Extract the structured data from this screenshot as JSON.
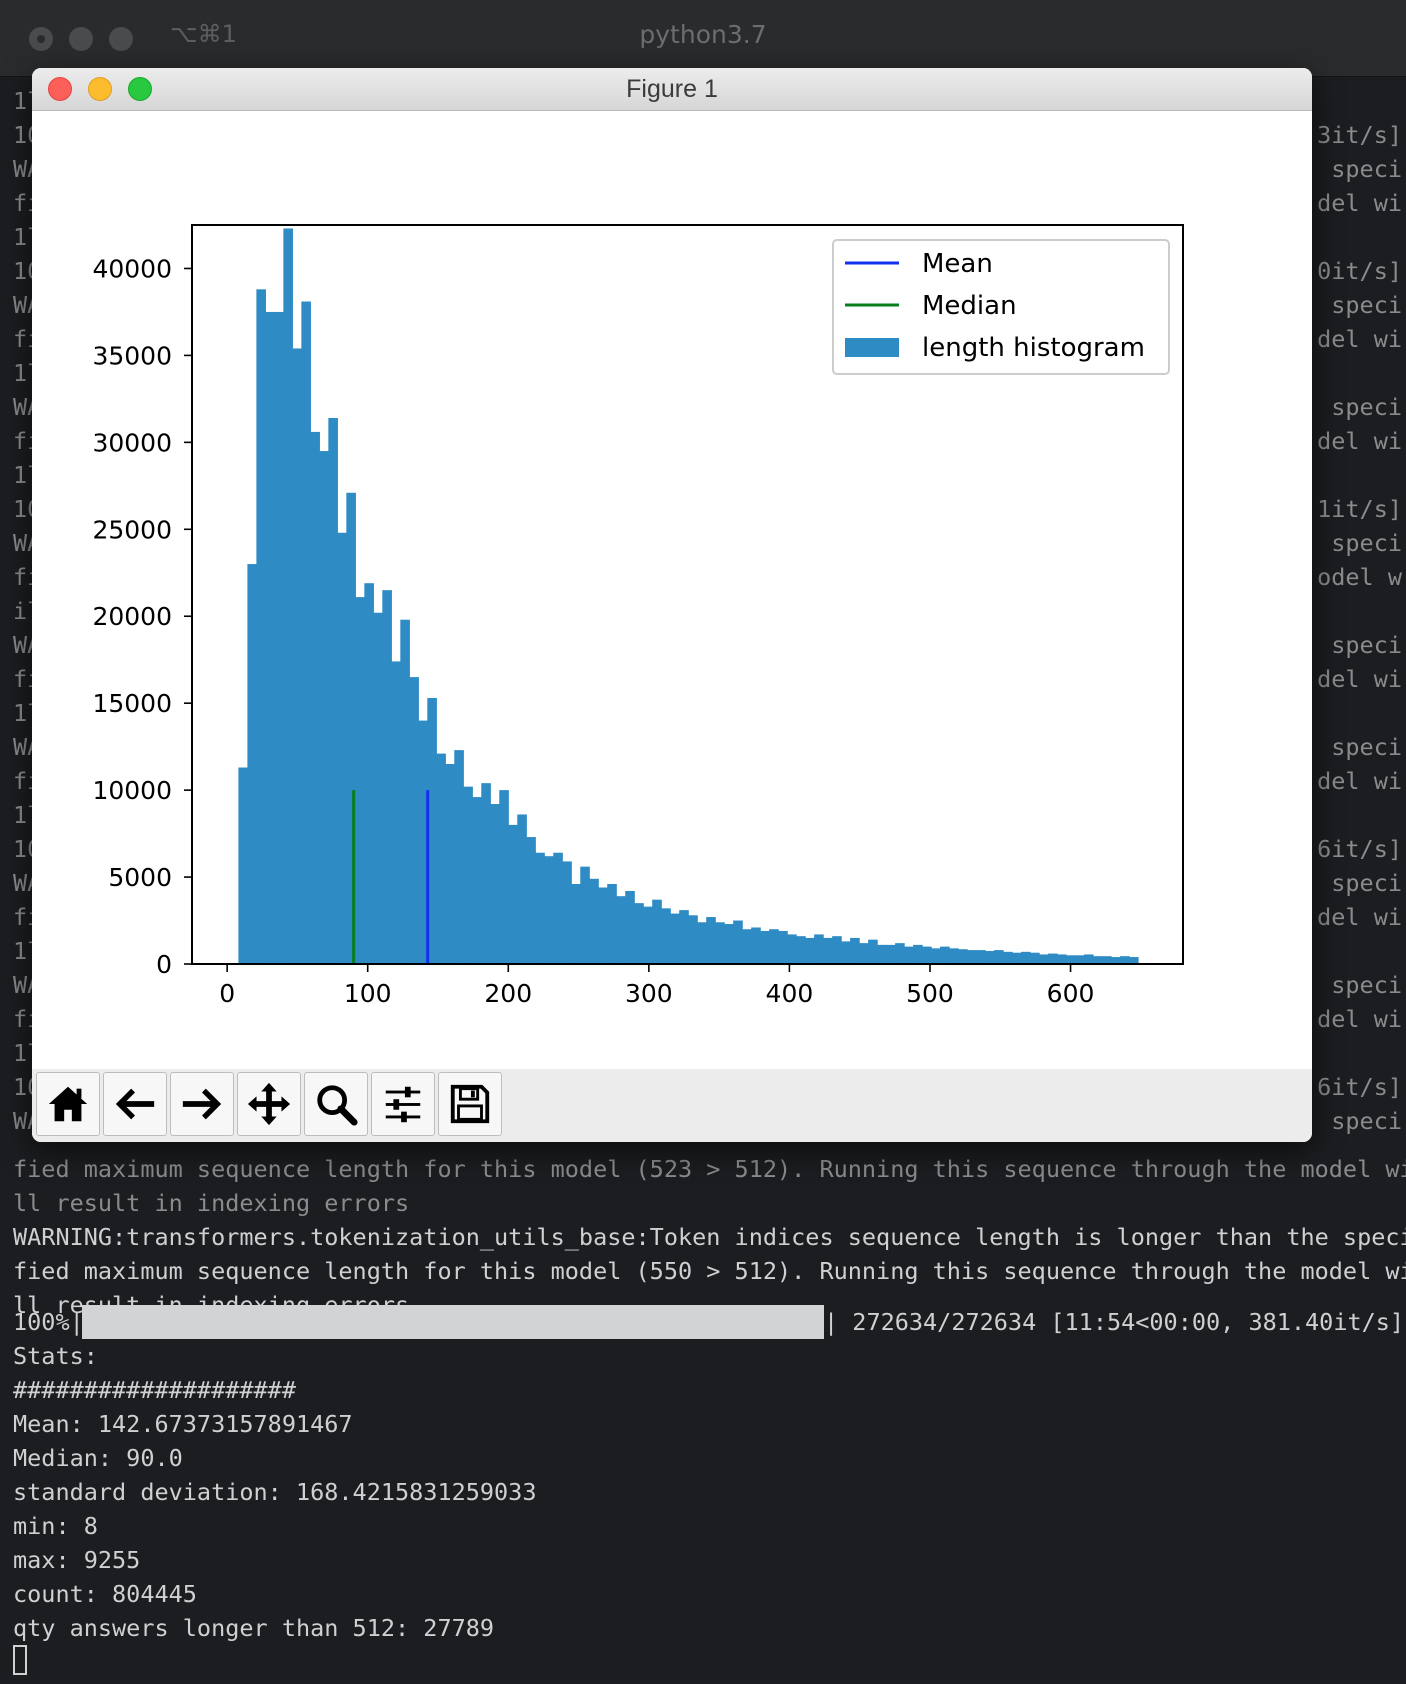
{
  "terminal": {
    "shortcut": "⌥⌘1",
    "title": "python3.7",
    "left_fragments": [
      "1l",
      "10",
      "WA",
      "fi",
      "1l",
      "10",
      "WA",
      "fi",
      "1l",
      "WA",
      "fi",
      "1l",
      "10",
      "WA",
      "fi",
      "il",
      "WA",
      "fi",
      "1l",
      "WA",
      "fi",
      "1l",
      "10",
      "WA",
      "fi",
      "1l",
      "WA",
      "fi",
      "1l",
      "10",
      "WA"
    ],
    "right_fragments": [
      "",
      "3it/s]",
      "speci",
      "del wi",
      "",
      "0it/s]",
      "speci",
      "del wi",
      "",
      "speci",
      "del wi",
      "",
      "1it/s]",
      "speci",
      "odel w",
      "",
      "speci",
      "del wi",
      "",
      "speci",
      "del wi",
      "",
      "6it/s]",
      "speci",
      "del wi",
      "",
      "speci",
      "del wi",
      "",
      "6it/s]",
      "speci"
    ],
    "lines": [
      "fied maximum sequence length for this model (523 > 512). Running this sequence through the model wi",
      "ll result in indexing errors",
      "WARNING:transformers.tokenization_utils_base:Token indices sequence length is longer than the speci",
      "fied maximum sequence length for this model (550 > 512). Running this sequence through the model wi",
      "ll result in indexing errors"
    ],
    "progress": {
      "percent_label": "100%|",
      "fraction": 1.0,
      "right_text": "| 272634/272634 [11:54<00:00, 381.40it/s]"
    },
    "stats": [
      "Stats:",
      "####################",
      "Mean: 142.67373157891467",
      "Median: 90.0",
      "standard deviation: 168.4215831259033",
      "min: 8",
      "max: 9255",
      "count: 804445",
      "qty answers longer than 512: 27789"
    ]
  },
  "figure": {
    "window_title": "Figure 1",
    "toolbar": [
      {
        "name": "home-button",
        "icon": "home-icon"
      },
      {
        "name": "back-button",
        "icon": "arrow-left-icon"
      },
      {
        "name": "forward-button",
        "icon": "arrow-right-icon"
      },
      {
        "name": "pan-button",
        "icon": "move-icon"
      },
      {
        "name": "zoom-button",
        "icon": "search-icon"
      },
      {
        "name": "configure-subplots-button",
        "icon": "sliders-icon"
      },
      {
        "name": "save-button",
        "icon": "floppy-disk-icon"
      }
    ]
  },
  "chart_data": {
    "type": "bar",
    "title": "",
    "xlabel": "",
    "ylabel": "",
    "xlim": [
      -25,
      680
    ],
    "ylim": [
      0,
      42500
    ],
    "x_ticks": [
      0,
      100,
      200,
      300,
      400,
      500,
      600
    ],
    "y_ticks": [
      0,
      5000,
      10000,
      15000,
      20000,
      25000,
      30000,
      35000,
      40000
    ],
    "bin_width": 6.4,
    "bin_start": 8,
    "series": [
      {
        "name": "length histogram",
        "color": "#2e8bc4",
        "values": [
          11300,
          23000,
          38800,
          37500,
          37500,
          42300,
          35400,
          38100,
          30600,
          29500,
          31400,
          24800,
          27100,
          21100,
          21900,
          20200,
          21500,
          17400,
          19800,
          16500,
          14000,
          15300,
          12100,
          11500,
          12300,
          10200,
          9600,
          10400,
          9200,
          10000,
          8000,
          8600,
          7300,
          6400,
          6200,
          6400,
          5900,
          4600,
          5600,
          4900,
          4400,
          4600,
          3900,
          4200,
          3500,
          3300,
          3700,
          3200,
          2900,
          3100,
          2800,
          2400,
          2700,
          2400,
          2300,
          2500,
          2000,
          2100,
          1900,
          2000,
          1900,
          1700,
          1600,
          1500,
          1700,
          1500,
          1600,
          1300,
          1500,
          1200,
          1400,
          1100,
          1100,
          1200,
          1000,
          1100,
          1000,
          900,
          1000,
          900,
          850,
          800,
          800,
          750,
          800,
          700,
          650,
          700,
          650,
          550,
          600,
          550,
          500,
          500,
          550,
          450,
          450,
          400,
          450,
          400
        ]
      },
      {
        "name": "Mean",
        "color": "#1232f0",
        "x": 142.67,
        "ymax": 10000
      },
      {
        "name": "Median",
        "color": "#0a7d1c",
        "x": 90.0,
        "ymax": 10000
      }
    ],
    "legend": {
      "position": "top-right",
      "entries": [
        "Mean",
        "Median",
        "length histogram"
      ]
    },
    "grid": false
  }
}
